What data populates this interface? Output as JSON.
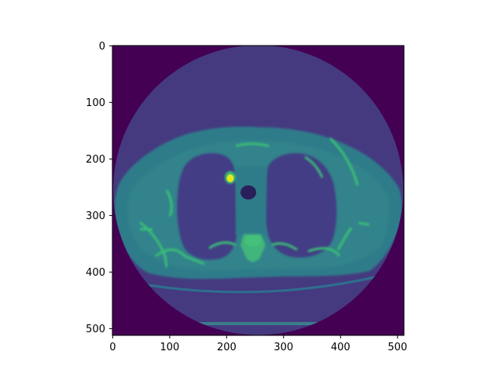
{
  "image": {
    "rows": 512,
    "cols": 512,
    "colormap": "viridis",
    "description_visible": "axial chest CT slice with circular reconstruction field of view"
  },
  "axes": {
    "x_ticks": [
      "0",
      "100",
      "200",
      "300",
      "400",
      "500"
    ],
    "y_ticks": [
      "0",
      "100",
      "200",
      "300",
      "400",
      "500"
    ],
    "xlim": [
      0,
      512
    ],
    "ylim": [
      512,
      0
    ]
  },
  "colors": {
    "background_outside": "#440154",
    "fov_fill": "#453a80",
    "body_tissue": "#2f7c8a",
    "lung": "#433e85",
    "bone": "#3bbf76",
    "bright": "#e7e51b"
  }
}
